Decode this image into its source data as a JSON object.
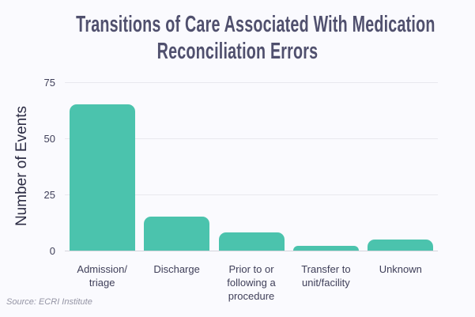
{
  "title": {
    "line1": "Transitions of Care Associated With Medication",
    "line2": "Reconciliation Errors"
  },
  "source": "Source: ECRI Institute",
  "chart_data": {
    "type": "bar",
    "title": "Transitions of Care Associated With Medication Reconciliation Errors",
    "categories": [
      "Admission/triage",
      "Discharge",
      "Prior to or following a procedure",
      "Transfer to unit/facility",
      "Unknown"
    ],
    "category_display_lines": [
      [
        "Admission/",
        "triage"
      ],
      [
        "Discharge"
      ],
      [
        "Prior to or",
        "following a",
        "procedure"
      ],
      [
        "Transfer to",
        "unit/facility"
      ],
      [
        "Unknown"
      ]
    ],
    "values": [
      65,
      15,
      8,
      2,
      5
    ],
    "xlabel": "",
    "ylabel": "Number of Events",
    "ylim": [
      0,
      75
    ],
    "yticks": [
      0,
      25,
      50,
      75
    ],
    "grid": true,
    "legend": false,
    "colors": {
      "bar": "#4bc3ad",
      "background": "#fafafe",
      "title_text": "#50506e",
      "axis_text": "#3f3f59",
      "y_axis_title_text": "#2c2c44",
      "gridline": "#e8e8ee",
      "baseline": "#d4d4dc",
      "source_text": "#9494a4"
    }
  }
}
